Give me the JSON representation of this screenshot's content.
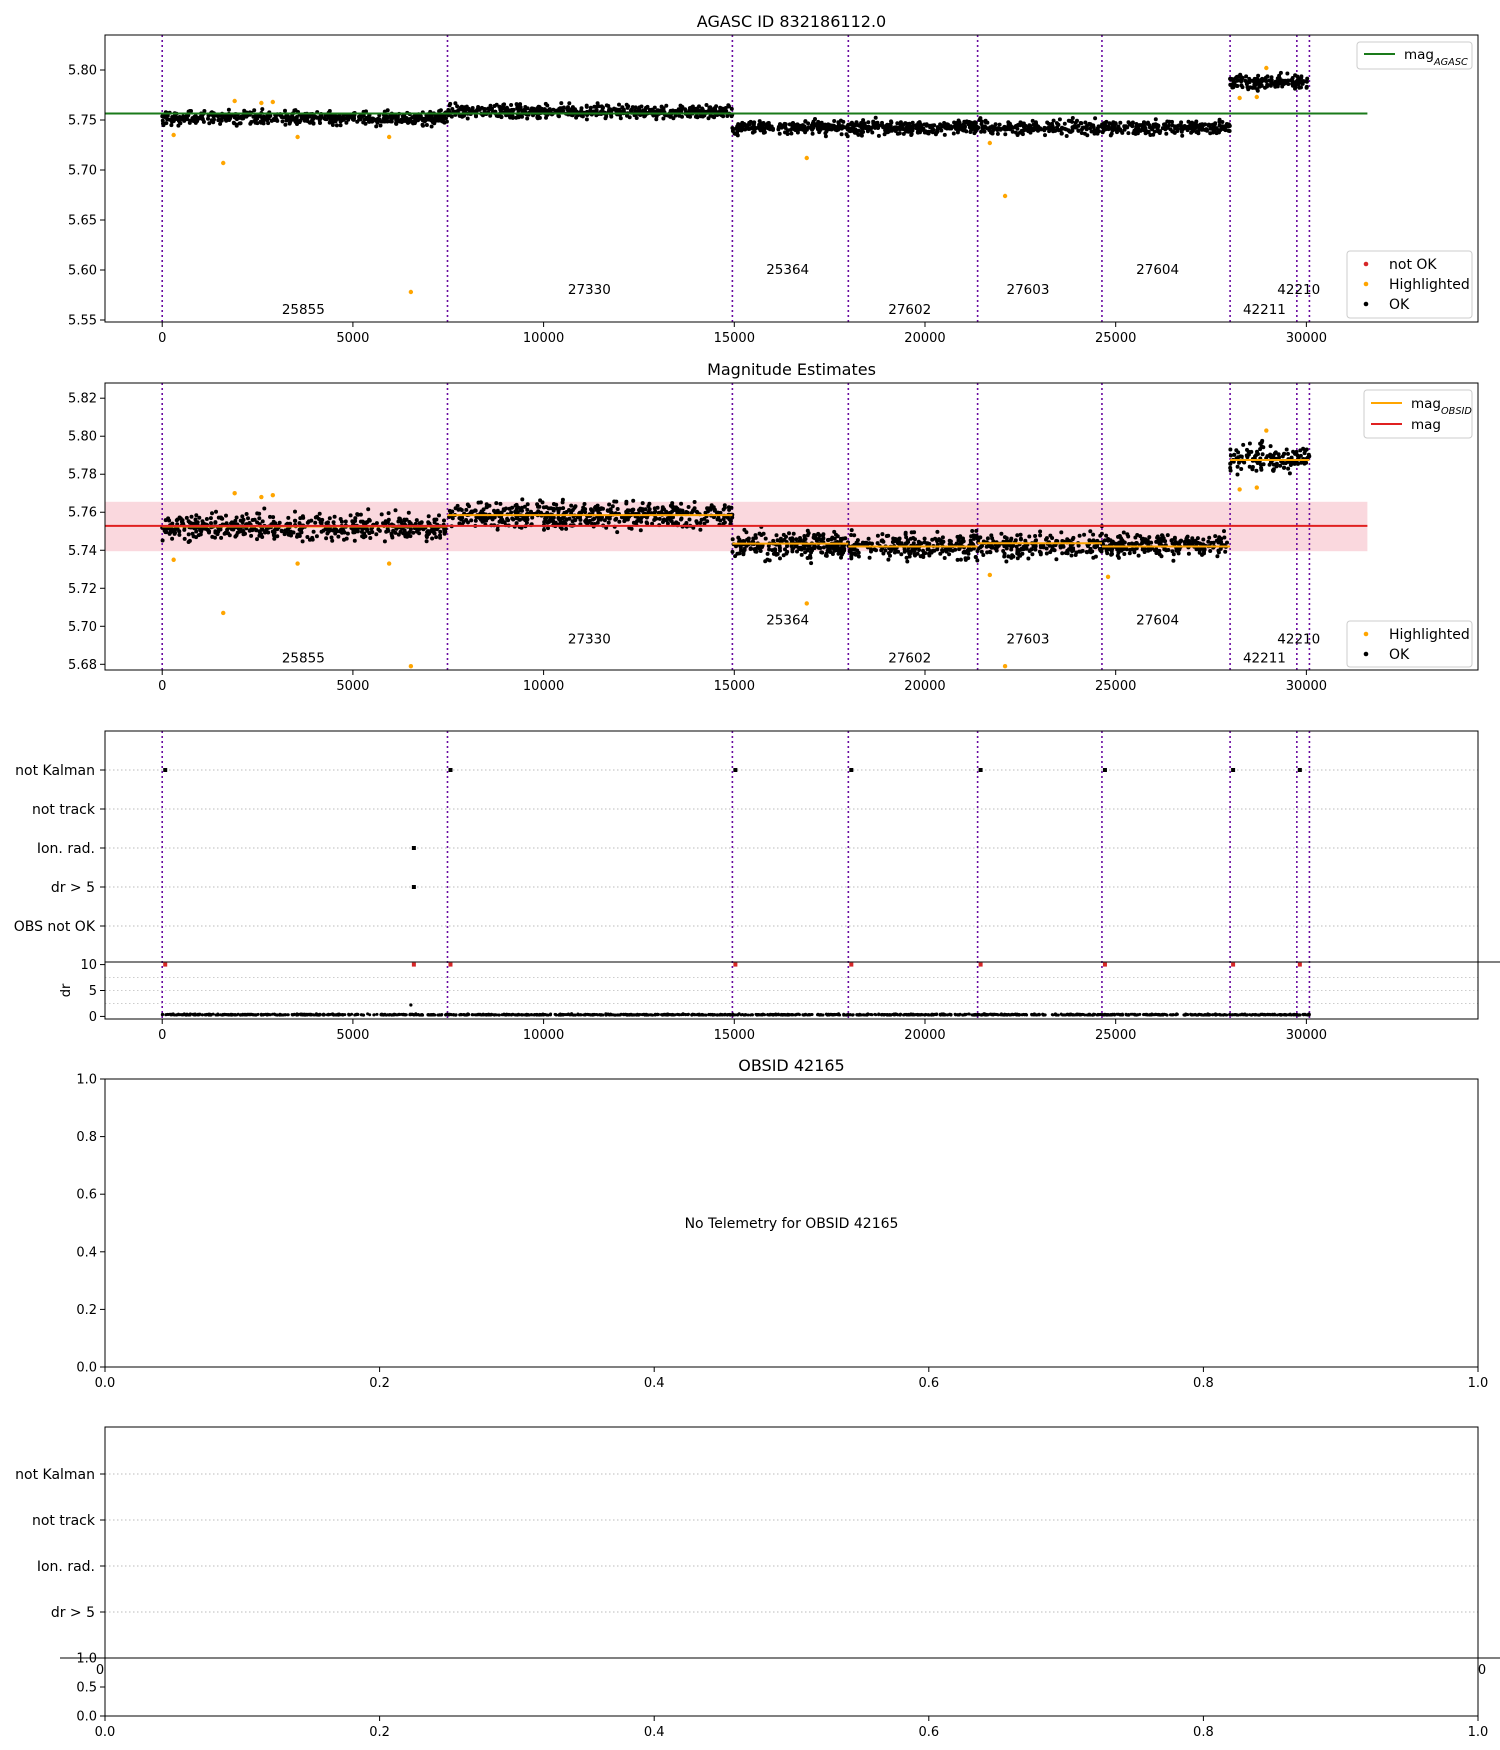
{
  "chart_data": [
    {
      "id": "panel1",
      "type": "scatter",
      "title": "AGASC ID 832186112.0",
      "xlim": [
        -1500,
        34500
      ],
      "ylim": [
        5.548,
        5.835
      ],
      "x_ticks": [
        0,
        5000,
        10000,
        15000,
        20000,
        25000,
        30000
      ],
      "x_tick_labels": [
        "0",
        "5000",
        "10000",
        "15000",
        "20000",
        "25000",
        "30000"
      ],
      "y_ticks": [
        5.55,
        5.6,
        5.65,
        5.7,
        5.75,
        5.8
      ],
      "y_tick_labels": [
        "5.55",
        "5.60",
        "5.65",
        "5.70",
        "5.75",
        "5.80"
      ],
      "obsid_boundaries": [
        0,
        7480,
        14950,
        17990,
        21380,
        24640,
        28000,
        29750,
        30080
      ],
      "obsid_labels": [
        {
          "text": "25855",
          "x": 3700,
          "y": 5.56
        },
        {
          "text": "27330",
          "x": 11200,
          "y": 5.58
        },
        {
          "text": "25364",
          "x": 16400,
          "y": 5.6
        },
        {
          "text": "27602",
          "x": 19600,
          "y": 5.56
        },
        {
          "text": "27603",
          "x": 22700,
          "y": 5.58
        },
        {
          "text": "27604",
          "x": 26100,
          "y": 5.6
        },
        {
          "text": "42211",
          "x": 28900,
          "y": 5.56
        },
        {
          "text": "42210",
          "x": 29800,
          "y": 5.58
        }
      ],
      "segments": [
        {
          "x": [
            0,
            7480
          ],
          "center": 5.752,
          "half_width": 0.011
        },
        {
          "x": [
            7480,
            14950
          ],
          "center": 5.7585,
          "half_width": 0.011
        },
        {
          "x": [
            14950,
            28000
          ],
          "center": 5.7425,
          "half_width": 0.011
        },
        {
          "x": [
            28000,
            30080
          ],
          "center": 5.788,
          "half_width": 0.011
        }
      ],
      "highlighted_points": [
        [
          300,
          5.735
        ],
        [
          1600,
          5.707
        ],
        [
          1900,
          5.769
        ],
        [
          2600,
          5.767
        ],
        [
          2900,
          5.768
        ],
        [
          3550,
          5.733
        ],
        [
          5950,
          5.733
        ],
        [
          6520,
          5.578
        ],
        [
          16900,
          5.712
        ],
        [
          21700,
          5.727
        ],
        [
          22100,
          5.674
        ],
        [
          28250,
          5.772
        ],
        [
          28700,
          5.773
        ],
        [
          28950,
          5.802
        ]
      ],
      "lines": [
        {
          "name": "mag<sub>AGASC</sub>",
          "label_text": "mag",
          "label_sub": "AGASC",
          "y": 5.7565,
          "x": [
            -1500,
            31600
          ],
          "color": "#1a7a1a"
        }
      ],
      "legend_bottom": [
        "not OK",
        "Highlighted",
        "OK"
      ],
      "colors": {
        "ok": "#000000",
        "highlighted": "#ffa500",
        "not_ok": "#d62728",
        "boundary": "#6a0aa0"
      }
    },
    {
      "id": "panel2",
      "type": "scatter",
      "title": "Magnitude Estimates",
      "xlim": [
        -1500,
        34500
      ],
      "ylim": [
        5.677,
        5.828
      ],
      "x_ticks": [
        0,
        5000,
        10000,
        15000,
        20000,
        25000,
        30000
      ],
      "x_tick_labels": [
        "0",
        "5000",
        "10000",
        "15000",
        "20000",
        "25000",
        "30000"
      ],
      "y_ticks": [
        5.68,
        5.7,
        5.72,
        5.74,
        5.76,
        5.78,
        5.8,
        5.82
      ],
      "y_tick_labels": [
        "5.68",
        "5.70",
        "5.72",
        "5.74",
        "5.76",
        "5.78",
        "5.80",
        "5.82"
      ],
      "band": {
        "y": [
          5.7395,
          5.7655
        ],
        "x": [
          -1500,
          31600
        ],
        "color": "#f8c8d0"
      },
      "mag_line": {
        "y": 5.7528,
        "x": [
          -1500,
          31600
        ],
        "color": "#e02020"
      },
      "obsid_mag": [
        {
          "x": [
            0,
            7480
          ],
          "y": 5.7525
        },
        {
          "x": [
            7480,
            14950
          ],
          "y": 5.7585
        },
        {
          "x": [
            14950,
            17990
          ],
          "y": 5.7435
        },
        {
          "x": [
            17990,
            21380
          ],
          "y": 5.742
        },
        {
          "x": [
            21380,
            24640
          ],
          "y": 5.7437
        },
        {
          "x": [
            24640,
            28000
          ],
          "y": 5.742
        },
        {
          "x": [
            28000,
            30080
          ],
          "y": 5.7875
        }
      ],
      "obsid_boundaries": [
        0,
        7480,
        14950,
        17990,
        21380,
        24640,
        28000,
        29750,
        30080
      ],
      "obsid_labels": [
        {
          "text": "25855",
          "x": 3700,
          "y": 5.683
        },
        {
          "text": "27330",
          "x": 11200,
          "y": 5.693
        },
        {
          "text": "25364",
          "x": 16400,
          "y": 5.703
        },
        {
          "text": "27602",
          "x": 19600,
          "y": 5.683
        },
        {
          "text": "27603",
          "x": 22700,
          "y": 5.693
        },
        {
          "text": "27604",
          "x": 26100,
          "y": 5.703
        },
        {
          "text": "42211",
          "x": 28900,
          "y": 5.683
        },
        {
          "text": "42210",
          "x": 29800,
          "y": 5.693
        }
      ],
      "segments": [
        {
          "x": [
            0,
            7480
          ],
          "center": 5.752,
          "half_width": 0.011
        },
        {
          "x": [
            7480,
            14950
          ],
          "center": 5.7585,
          "half_width": 0.011
        },
        {
          "x": [
            14950,
            28000
          ],
          "center": 5.7425,
          "half_width": 0.011
        },
        {
          "x": [
            28000,
            30080
          ],
          "center": 5.788,
          "half_width": 0.011
        }
      ],
      "highlighted_points": [
        [
          300,
          5.735
        ],
        [
          1600,
          5.707
        ],
        [
          1900,
          5.77
        ],
        [
          2600,
          5.768
        ],
        [
          2900,
          5.769
        ],
        [
          3550,
          5.733
        ],
        [
          5950,
          5.733
        ],
        [
          6520,
          5.679
        ],
        [
          16900,
          5.712
        ],
        [
          21700,
          5.727
        ],
        [
          22100,
          5.679
        ],
        [
          24800,
          5.726
        ],
        [
          28250,
          5.772
        ],
        [
          28700,
          5.773
        ],
        [
          28950,
          5.803
        ]
      ],
      "legend_top": [
        {
          "label_text": "mag",
          "label_sub": "OBSID",
          "color": "#ffa500"
        },
        {
          "label_text": "mag",
          "label_sub": "",
          "color": "#e02020"
        }
      ],
      "legend_bottom": [
        "Highlighted",
        "OK"
      ],
      "colors": {
        "ok": "#000000",
        "highlighted": "#ffa500",
        "boundary": "#6a0aa0"
      }
    },
    {
      "id": "panel3",
      "type": "scatter",
      "xlim": [
        -1500,
        34500
      ],
      "flag_rows": [
        "not Kalman",
        "not track",
        "Ion. rad.",
        "dr > 5",
        "OBS not OK"
      ],
      "dr_ylabel": "dr",
      "dr_ylim": [
        -0.5,
        10.5
      ],
      "dr_ticks": [
        0,
        5,
        10
      ],
      "dr_tick_labels": [
        "0",
        "5",
        "10"
      ],
      "x_ticks": [
        0,
        5000,
        10000,
        15000,
        20000,
        25000,
        30000
      ],
      "x_tick_labels": [
        "0",
        "5000",
        "10000",
        "15000",
        "20000",
        "25000",
        "30000"
      ],
      "obsid_boundaries": [
        0,
        7480,
        14950,
        17990,
        21380,
        24640,
        28000,
        29750,
        30080
      ],
      "flag_points": [
        {
          "row": "not Kalman",
          "x": [
            0,
            7480,
            14950,
            17990,
            21380,
            24640,
            28000,
            29750
          ]
        },
        {
          "row": "Ion. rad.",
          "x": [
            6520
          ]
        },
        {
          "row": "dr > 5",
          "x": [
            6520
          ]
        }
      ],
      "dr_spikes_red": [
        0,
        6520,
        7480,
        14950,
        17990,
        21380,
        24640,
        28000,
        29750
      ],
      "dr_outliers": [
        [
          6520,
          2.2
        ]
      ],
      "dr_baseline": 0.25,
      "colors": {
        "ok": "#000000",
        "not_ok": "#d62728",
        "boundary": "#6a0aa0"
      }
    },
    {
      "id": "panel4",
      "type": "scatter",
      "title": "OBSID 42165",
      "message": "No Telemetry for OBSID 42165",
      "xlim": [
        0,
        1
      ],
      "ylim": [
        0,
        1
      ],
      "x_ticks": [
        0,
        0.2,
        0.4,
        0.6,
        0.8,
        1
      ],
      "x_tick_labels": [
        "0.0",
        "0.2",
        "0.4",
        "0.6",
        "0.8",
        "1.0"
      ],
      "y_ticks": [
        0,
        0.2,
        0.4,
        0.6,
        0.8,
        1
      ],
      "y_tick_labels": [
        "0.0",
        "0.2",
        "0.4",
        "0.6",
        "0.8",
        "1.0"
      ]
    },
    {
      "id": "panel5",
      "type": "scatter",
      "flag_rows": [
        "not Kalman",
        "not track",
        "Ion. rad.",
        "dr > 5"
      ],
      "xlim": [
        0,
        1
      ],
      "ylim": [
        0,
        1
      ],
      "x_ticks": [
        0,
        0.2,
        0.4,
        0.6,
        0.8,
        1
      ],
      "x_tick_labels": [
        "0.0",
        "0.2",
        "0.4",
        "0.6",
        "0.8",
        "1.0"
      ],
      "y_ticks": [
        0,
        0.5,
        1
      ],
      "y_tick_labels": [
        "0.0",
        "0.5",
        "1.0"
      ],
      "clipped_tick_labels": {
        "left": "0",
        "right": "0"
      }
    }
  ]
}
